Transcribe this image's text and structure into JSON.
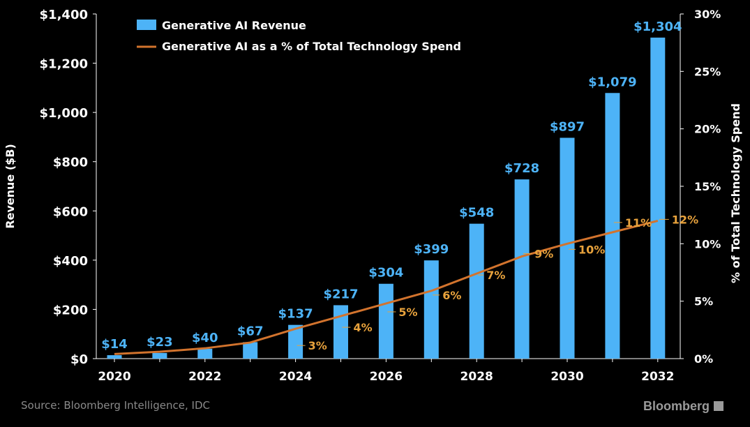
{
  "colors": {
    "background": "#000000",
    "bar": "#4db3f7",
    "bar_label": "#4db3f7",
    "line": "#d2732d",
    "line_label": "#e8a23c",
    "axis_text": "#ffffff"
  },
  "chart_data": {
    "type": "bar",
    "x": [
      2020,
      2021,
      2022,
      2023,
      2024,
      2025,
      2026,
      2027,
      2028,
      2029,
      2030,
      2031,
      2032
    ],
    "series": [
      {
        "name": "Generative AI Revenue",
        "type": "bar",
        "axis": "left",
        "values": [
          14,
          23,
          40,
          67,
          137,
          217,
          304,
          399,
          548,
          728,
          897,
          1079,
          1304
        ],
        "labels": [
          "$14",
          "$23",
          "$40",
          "$67",
          "$137",
          "$217",
          "$304",
          "$399",
          "$548",
          "$728",
          "$897",
          "$1,079",
          "$1,304"
        ]
      },
      {
        "name": "Generative AI as a % of Total Technology Spend",
        "type": "line",
        "axis": "right",
        "values": [
          0.4,
          0.6,
          0.9,
          1.4,
          2.6,
          3.7,
          4.8,
          5.9,
          7.4,
          8.9,
          10.0,
          11.0,
          12.0
        ],
        "labels": [
          "",
          "",
          "",
          "",
          "3%",
          "4%",
          "5%",
          "6%",
          "7%",
          "9%",
          "10%",
          "11%",
          "12%"
        ]
      }
    ],
    "xticks": [
      "2020",
      "2022",
      "2024",
      "2026",
      "2028",
      "2030",
      "2032"
    ],
    "ylabel": "Revenue ($B)",
    "ylim": [
      0,
      1400
    ],
    "yticks": [
      "$0",
      "$200",
      "$400",
      "$600",
      "$800",
      "$1,000",
      "$1,200",
      "$1,400"
    ],
    "y2label": "% of Total Technology Spend",
    "y2lim": [
      0,
      30
    ],
    "y2ticks": [
      "0%",
      "5%",
      "10%",
      "15%",
      "20%",
      "25%",
      "30%"
    ],
    "legend_position": "top-left",
    "grid": false
  },
  "footer": {
    "source": "Source: Bloomberg Intelligence, IDC",
    "brand": "Bloomberg"
  }
}
